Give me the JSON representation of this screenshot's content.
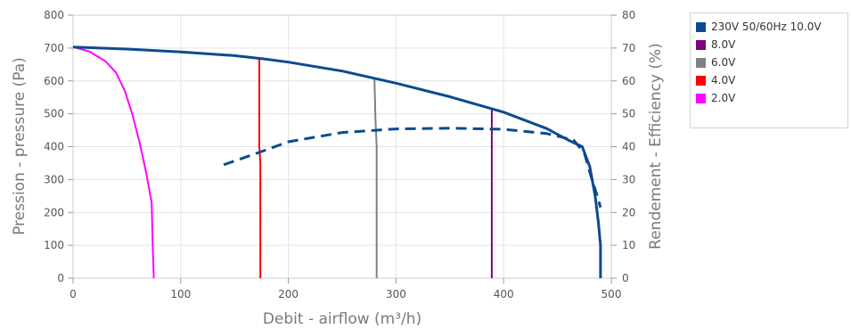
{
  "chart_data": {
    "type": "line",
    "xlabel": "Debit - airflow (m³/h)",
    "ylabel": "Pression - pressure (Pa)",
    "y2label": "Rendement - Efficiency (%)",
    "xlim": [
      0,
      500
    ],
    "ylim": [
      0,
      800
    ],
    "y2lim": [
      0,
      80
    ],
    "x_ticks": [
      0,
      100,
      200,
      300,
      400,
      500
    ],
    "y_ticks": [
      0,
      100,
      200,
      300,
      400,
      500,
      600,
      700,
      800
    ],
    "y2_ticks": [
      0,
      10,
      20,
      30,
      40,
      50,
      60,
      70,
      80
    ],
    "grid": true,
    "legend_position": "top-right outside",
    "series": [
      {
        "name": "230V 50/60Hz 10.0V",
        "color": "#0d4a8f",
        "points": [
          [
            0,
            703
          ],
          [
            50,
            697
          ],
          [
            100,
            688
          ],
          [
            150,
            677
          ],
          [
            175,
            668
          ],
          [
            200,
            657
          ],
          [
            250,
            630
          ],
          [
            300,
            593
          ],
          [
            350,
            552
          ],
          [
            400,
            505
          ],
          [
            440,
            455
          ],
          [
            460,
            420
          ],
          [
            473,
            400
          ],
          [
            480,
            340
          ],
          [
            485,
            250
          ],
          [
            488,
            170
          ],
          [
            490,
            100
          ],
          [
            490,
            0
          ]
        ]
      },
      {
        "name": "8.0V",
        "color": "#800080",
        "points": [
          [
            389,
            515
          ],
          [
            389,
            0
          ]
        ]
      },
      {
        "name": "6.0V",
        "color": "#808080",
        "points": [
          [
            280,
            605
          ],
          [
            281,
            480
          ],
          [
            282,
            400
          ],
          [
            282,
            0
          ]
        ]
      },
      {
        "name": "4.0V",
        "color": "#ff0000",
        "points": [
          [
            173,
            668
          ],
          [
            173,
            400
          ],
          [
            174,
            350
          ],
          [
            174,
            0
          ]
        ]
      },
      {
        "name": "2.0V",
        "color": "#ff00ff",
        "points": [
          [
            0,
            703
          ],
          [
            15,
            690
          ],
          [
            30,
            660
          ],
          [
            40,
            625
          ],
          [
            48,
            570
          ],
          [
            55,
            500
          ],
          [
            62,
            410
          ],
          [
            68,
            320
          ],
          [
            73,
            230
          ],
          [
            74,
            100
          ],
          [
            75,
            0
          ]
        ]
      }
    ],
    "efficiency_curve": {
      "color": "#0d4a8f",
      "points": [
        [
          140,
          34.5
        ],
        [
          175,
          38.5
        ],
        [
          200,
          41.5
        ],
        [
          250,
          44.3
        ],
        [
          300,
          45.4
        ],
        [
          350,
          45.6
        ],
        [
          400,
          45.3
        ],
        [
          440,
          44.0
        ],
        [
          465,
          42.0
        ],
        [
          475,
          38.0
        ],
        [
          482,
          30.0
        ],
        [
          487,
          25.0
        ],
        [
          490,
          21.5
        ]
      ]
    }
  }
}
